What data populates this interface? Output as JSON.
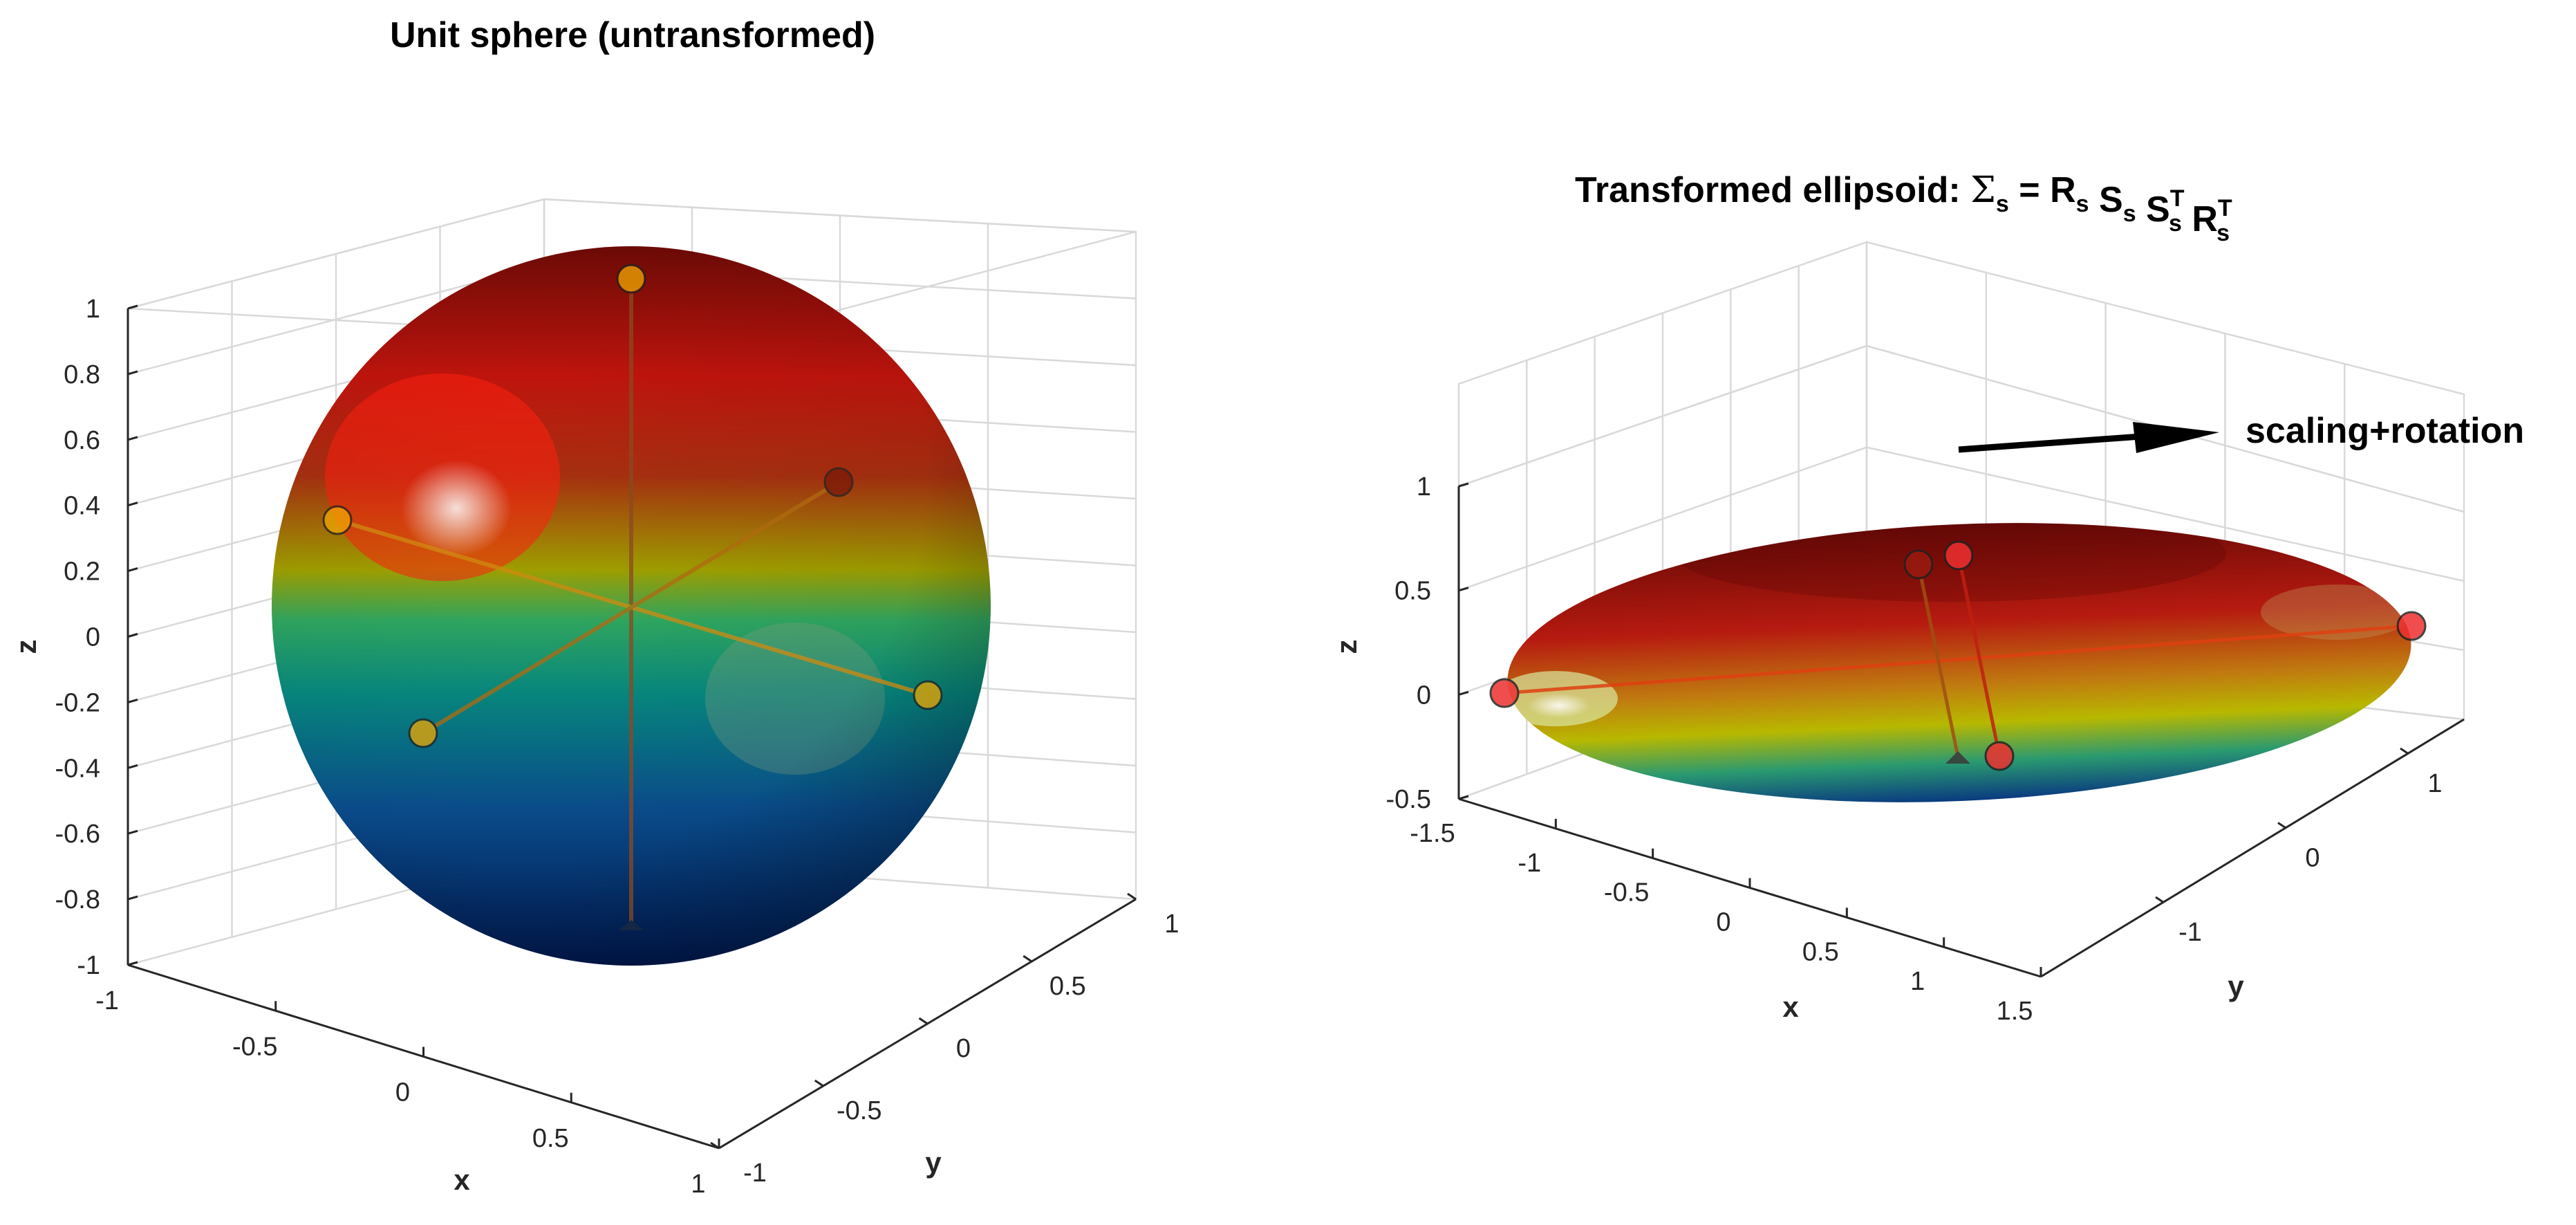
{
  "left_panel": {
    "title": "Unit sphere (untransformed)",
    "x_label": "x",
    "y_label": "y",
    "z_label": "z",
    "x_ticks": [
      "-1",
      "-0.5",
      "0",
      "0.5",
      "1"
    ],
    "y_ticks": [
      "-1",
      "-0.5",
      "0",
      "0.5",
      "1"
    ],
    "z_ticks": [
      "-1",
      "-0.8",
      "-0.6",
      "-0.4",
      "-0.2",
      "0",
      "0.2",
      "0.4",
      "0.6",
      "0.8",
      "1"
    ]
  },
  "right_panel": {
    "title_prefix": "Transformed ellipsoid: ",
    "title_sigma": "Σ",
    "title_rest": [
      {
        "base": "R",
        "sub": "s",
        "sup": ""
      },
      {
        "base": "S",
        "sub": "s",
        "sup": ""
      },
      {
        "base": "S",
        "sub": "s",
        "sup": "T"
      },
      {
        "base": "R",
        "sub": "s",
        "sup": "T"
      }
    ],
    "title_sub_s": "s",
    "title_eq": " = ",
    "annotation": "scaling+rotation",
    "x_label": "x",
    "y_label": "y",
    "z_label": "z",
    "x_ticks": [
      "-1.5",
      "-1",
      "-0.5",
      "0",
      "0.5",
      "1",
      "1.5"
    ],
    "y_ticks": [
      "-1",
      "0",
      "1"
    ],
    "z_ticks": [
      "-0.5",
      "0",
      "0.5",
      "1"
    ]
  },
  "colors": {
    "sphere_top": "#7a0a05",
    "sphere_red": "#e01010",
    "sphere_yellow": "#c8c800",
    "sphere_green": "#10a070",
    "sphere_blue": "#003080",
    "axis_marker_left": "#f0a800",
    "axis_marker_right": "#ee3030",
    "arrow": "#000000"
  }
}
